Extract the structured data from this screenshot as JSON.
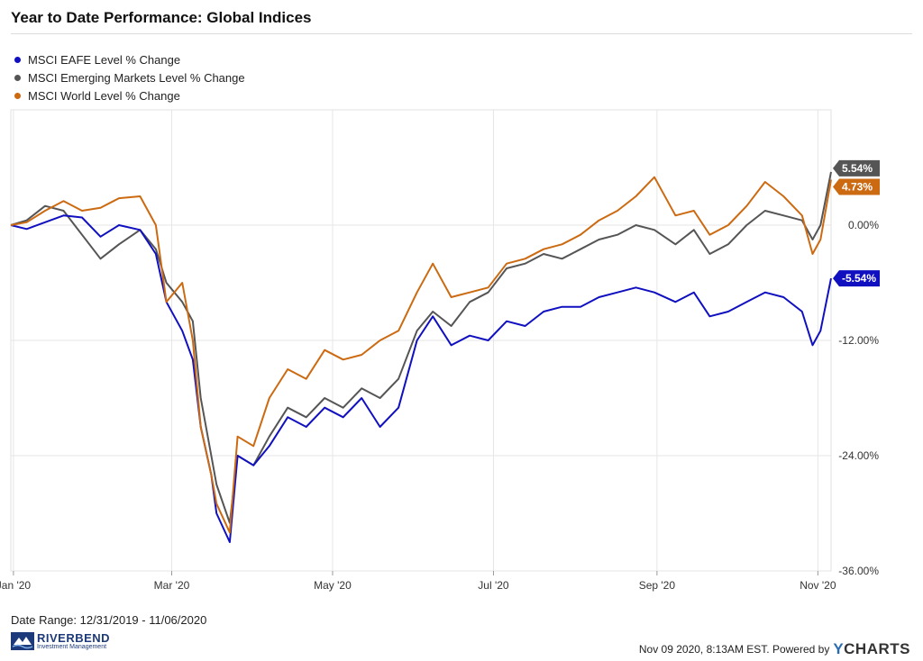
{
  "header": {
    "title": "Year to Date Performance: Global Indices"
  },
  "footer": {
    "date_range": "Date Range: 12/31/2019 - 11/06/2020",
    "timestamp": "Nov 09 2020, 8:13AM EST. Powered by",
    "brand_y": "Y",
    "brand_rest": "CHARTS",
    "logo_name": "RIVERBEND",
    "logo_sub": "Investment Management"
  },
  "colors": {
    "eafe": "#1010c0",
    "em": "#555555",
    "world": "#cc6a12",
    "grid": "#e6e6e6"
  },
  "chart_data": {
    "type": "line",
    "xlabels": [
      "Jan '20",
      "Mar '20",
      "May '20",
      "Jul '20",
      "Sep '20",
      "Nov '20"
    ],
    "yticks": [
      "0.00%",
      "-12.00%",
      "-24.00%",
      "-36.00%"
    ],
    "ylim": [
      -36,
      12
    ],
    "grid": true,
    "legend_position": "top-left",
    "series": [
      {
        "name": "MSCI EAFE Level % Change",
        "color": "#1010c0",
        "end_label": "-5.54%",
        "points": [
          [
            "2019-12-31",
            0
          ],
          [
            "2020-01-06",
            -0.4
          ],
          [
            "2020-01-13",
            0.3
          ],
          [
            "2020-01-20",
            1
          ],
          [
            "2020-01-27",
            0.8
          ],
          [
            "2020-02-03",
            -1.2
          ],
          [
            "2020-02-10",
            0
          ],
          [
            "2020-02-18",
            -0.5
          ],
          [
            "2020-02-24",
            -3
          ],
          [
            "2020-02-28",
            -8
          ],
          [
            "2020-03-05",
            -11
          ],
          [
            "2020-03-09",
            -14
          ],
          [
            "2020-03-12",
            -21
          ],
          [
            "2020-03-16",
            -26
          ],
          [
            "2020-03-18",
            -30
          ],
          [
            "2020-03-23",
            -33
          ],
          [
            "2020-03-26",
            -24
          ],
          [
            "2020-04-01",
            -25
          ],
          [
            "2020-04-07",
            -23
          ],
          [
            "2020-04-14",
            -20
          ],
          [
            "2020-04-21",
            -21
          ],
          [
            "2020-04-28",
            -19
          ],
          [
            "2020-05-05",
            -20
          ],
          [
            "2020-05-12",
            -18
          ],
          [
            "2020-05-19",
            -21
          ],
          [
            "2020-05-26",
            -19
          ],
          [
            "2020-06-02",
            -12
          ],
          [
            "2020-06-08",
            -9.5
          ],
          [
            "2020-06-15",
            -12.5
          ],
          [
            "2020-06-22",
            -11.5
          ],
          [
            "2020-06-29",
            -12
          ],
          [
            "2020-07-06",
            -10
          ],
          [
            "2020-07-13",
            -10.5
          ],
          [
            "2020-07-20",
            -9
          ],
          [
            "2020-07-27",
            -8.5
          ],
          [
            "2020-08-03",
            -8.5
          ],
          [
            "2020-08-10",
            -7.5
          ],
          [
            "2020-08-17",
            -7
          ],
          [
            "2020-08-24",
            -6.5
          ],
          [
            "2020-08-31",
            -7
          ],
          [
            "2020-09-08",
            -8
          ],
          [
            "2020-09-15",
            -7
          ],
          [
            "2020-09-21",
            -9.5
          ],
          [
            "2020-09-28",
            -9
          ],
          [
            "2020-10-05",
            -8
          ],
          [
            "2020-10-12",
            -7
          ],
          [
            "2020-10-19",
            -7.5
          ],
          [
            "2020-10-26",
            -9
          ],
          [
            "2020-10-30",
            -12.5
          ],
          [
            "2020-11-02",
            -11
          ],
          [
            "2020-11-06",
            -5.54
          ]
        ]
      },
      {
        "name": "MSCI Emerging Markets Level % Change",
        "color": "#555555",
        "end_label": "5.54%",
        "points": [
          [
            "2019-12-31",
            0
          ],
          [
            "2020-01-06",
            0.5
          ],
          [
            "2020-01-13",
            2
          ],
          [
            "2020-01-20",
            1.5
          ],
          [
            "2020-01-27",
            -1
          ],
          [
            "2020-02-03",
            -3.5
          ],
          [
            "2020-02-10",
            -2
          ],
          [
            "2020-02-18",
            -0.5
          ],
          [
            "2020-02-24",
            -2.5
          ],
          [
            "2020-02-28",
            -6
          ],
          [
            "2020-03-05",
            -8
          ],
          [
            "2020-03-09",
            -10
          ],
          [
            "2020-03-12",
            -18
          ],
          [
            "2020-03-16",
            -24
          ],
          [
            "2020-03-18",
            -27
          ],
          [
            "2020-03-23",
            -31
          ],
          [
            "2020-03-26",
            -24
          ],
          [
            "2020-04-01",
            -25
          ],
          [
            "2020-04-07",
            -22
          ],
          [
            "2020-04-14",
            -19
          ],
          [
            "2020-04-21",
            -20
          ],
          [
            "2020-04-28",
            -18
          ],
          [
            "2020-05-05",
            -19
          ],
          [
            "2020-05-12",
            -17
          ],
          [
            "2020-05-19",
            -18
          ],
          [
            "2020-05-26",
            -16
          ],
          [
            "2020-06-02",
            -11
          ],
          [
            "2020-06-08",
            -9
          ],
          [
            "2020-06-15",
            -10.5
          ],
          [
            "2020-06-22",
            -8
          ],
          [
            "2020-06-29",
            -7
          ],
          [
            "2020-07-06",
            -4.5
          ],
          [
            "2020-07-13",
            -4
          ],
          [
            "2020-07-20",
            -3
          ],
          [
            "2020-07-27",
            -3.5
          ],
          [
            "2020-08-03",
            -2.5
          ],
          [
            "2020-08-10",
            -1.5
          ],
          [
            "2020-08-17",
            -1
          ],
          [
            "2020-08-24",
            0
          ],
          [
            "2020-08-31",
            -0.5
          ],
          [
            "2020-09-08",
            -2
          ],
          [
            "2020-09-15",
            -0.5
          ],
          [
            "2020-09-21",
            -3
          ],
          [
            "2020-09-28",
            -2
          ],
          [
            "2020-10-05",
            0
          ],
          [
            "2020-10-12",
            1.5
          ],
          [
            "2020-10-19",
            1
          ],
          [
            "2020-10-26",
            0.5
          ],
          [
            "2020-10-30",
            -1.5
          ],
          [
            "2020-11-02",
            0
          ],
          [
            "2020-11-06",
            5.54
          ]
        ]
      },
      {
        "name": "MSCI World Level % Change",
        "color": "#cc6a12",
        "end_label": "4.73%",
        "points": [
          [
            "2019-12-31",
            0
          ],
          [
            "2020-01-06",
            0.3
          ],
          [
            "2020-01-13",
            1.5
          ],
          [
            "2020-01-20",
            2.5
          ],
          [
            "2020-01-27",
            1.5
          ],
          [
            "2020-02-03",
            1.8
          ],
          [
            "2020-02-10",
            2.8
          ],
          [
            "2020-02-18",
            3
          ],
          [
            "2020-02-24",
            0
          ],
          [
            "2020-02-28",
            -8
          ],
          [
            "2020-03-05",
            -6
          ],
          [
            "2020-03-09",
            -12
          ],
          [
            "2020-03-12",
            -21
          ],
          [
            "2020-03-16",
            -26
          ],
          [
            "2020-03-18",
            -29
          ],
          [
            "2020-03-23",
            -32
          ],
          [
            "2020-03-26",
            -22
          ],
          [
            "2020-04-01",
            -23
          ],
          [
            "2020-04-07",
            -18
          ],
          [
            "2020-04-14",
            -15
          ],
          [
            "2020-04-21",
            -16
          ],
          [
            "2020-04-28",
            -13
          ],
          [
            "2020-05-05",
            -14
          ],
          [
            "2020-05-12",
            -13.5
          ],
          [
            "2020-05-19",
            -12
          ],
          [
            "2020-05-26",
            -11
          ],
          [
            "2020-06-02",
            -7
          ],
          [
            "2020-06-08",
            -4
          ],
          [
            "2020-06-15",
            -7.5
          ],
          [
            "2020-06-22",
            -7
          ],
          [
            "2020-06-29",
            -6.5
          ],
          [
            "2020-07-06",
            -4
          ],
          [
            "2020-07-13",
            -3.5
          ],
          [
            "2020-07-20",
            -2.5
          ],
          [
            "2020-07-27",
            -2
          ],
          [
            "2020-08-03",
            -1
          ],
          [
            "2020-08-10",
            0.5
          ],
          [
            "2020-08-17",
            1.5
          ],
          [
            "2020-08-24",
            3
          ],
          [
            "2020-08-31",
            5
          ],
          [
            "2020-09-08",
            1
          ],
          [
            "2020-09-15",
            1.5
          ],
          [
            "2020-09-21",
            -1
          ],
          [
            "2020-09-28",
            0
          ],
          [
            "2020-10-05",
            2
          ],
          [
            "2020-10-12",
            4.5
          ],
          [
            "2020-10-19",
            3
          ],
          [
            "2020-10-26",
            1
          ],
          [
            "2020-10-30",
            -3
          ],
          [
            "2020-11-02",
            -1.5
          ],
          [
            "2020-11-06",
            4.73
          ]
        ]
      }
    ]
  }
}
